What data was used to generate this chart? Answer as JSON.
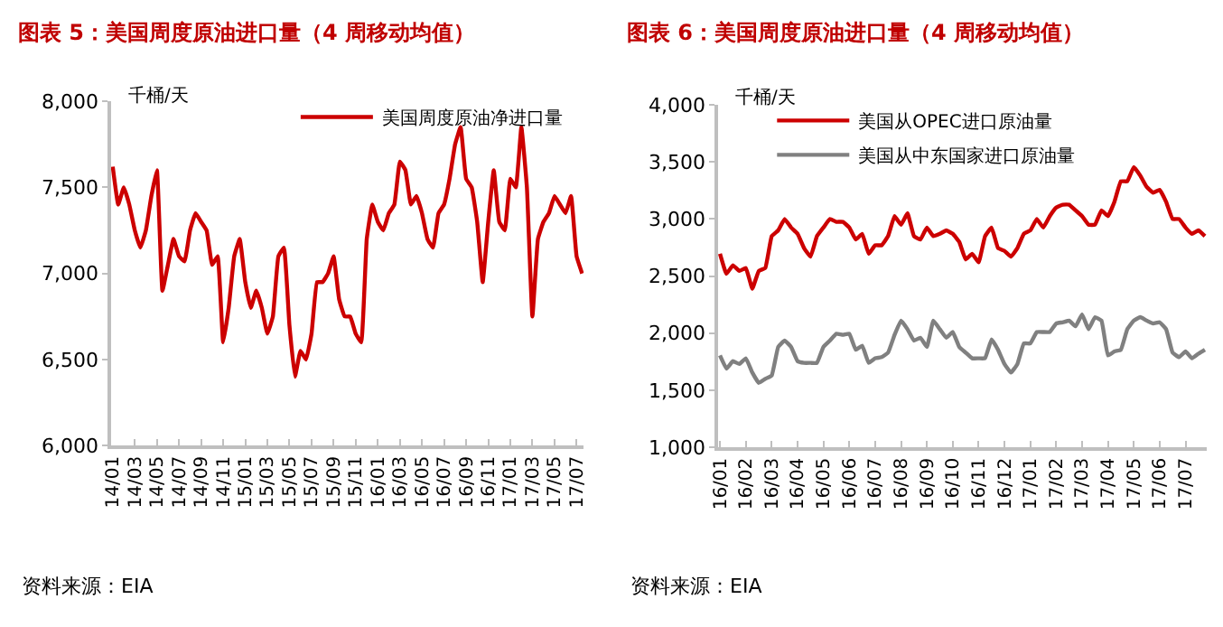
{
  "chart_data": [
    {
      "type": "line",
      "title": "图表 5：美国周度原油进口量（4 周移动均值）",
      "ylabel": "千桶/天",
      "annotations": [
        "资料来源：EIA"
      ],
      "legend": "top right",
      "grid": false,
      "marker": "none",
      "line_style": "solid",
      "categories": [
        "14/01",
        null,
        null,
        null,
        "14/03",
        null,
        null,
        null,
        "14/05",
        null,
        null,
        null,
        "14/07",
        null,
        null,
        null,
        "14/09",
        null,
        null,
        null,
        "14/11",
        null,
        null,
        null,
        "15/01",
        null,
        null,
        null,
        "15/03",
        null,
        null,
        null,
        "15/05",
        null,
        null,
        null,
        "15/07",
        null,
        null,
        null,
        "15/09",
        null,
        null,
        null,
        "15/11",
        null,
        null,
        null,
        "16/01",
        null,
        null,
        null,
        "16/03",
        null,
        null,
        null,
        "16/05",
        null,
        null,
        null,
        "16/07",
        null,
        null,
        null,
        "16/09",
        null,
        null,
        null,
        "16/11",
        null,
        null,
        null,
        "17/01",
        null,
        null,
        null,
        "17/03",
        null,
        null,
        null,
        "17/05",
        null,
        null,
        null,
        "17/07",
        null
      ],
      "ylim": [
        6000,
        8000
      ],
      "yticks": [
        {
          "value": 6000,
          "label": "6,000"
        },
        {
          "value": 6500,
          "label": "6,500"
        },
        {
          "value": 7000,
          "label": "7,000"
        },
        {
          "value": 7500,
          "label": "7,500"
        },
        {
          "value": 8000,
          "label": "8,000"
        }
      ],
      "series": [
        {
          "name": "美国周度原油净进口量",
          "color": "#cc0000",
          "values": [
            7620,
            7400,
            7500,
            7400,
            7250,
            7150,
            7250,
            7450,
            7600,
            6900,
            7050,
            7200,
            7100,
            7070,
            7250,
            7350,
            7300,
            7250,
            7050,
            7100,
            6600,
            6800,
            7100,
            7200,
            6950,
            6800,
            6900,
            6800,
            6650,
            6750,
            7100,
            7150,
            6700,
            6400,
            6550,
            6500,
            6650,
            6950,
            6950,
            7000,
            7100,
            6850,
            6750,
            6750,
            6650,
            6600,
            7200,
            7400,
            7300,
            7250,
            7350,
            7400,
            7650,
            7600,
            7400,
            7450,
            7350,
            7200,
            7150,
            7350,
            7400,
            7550,
            7750,
            7850,
            7550,
            7500,
            7300,
            6950,
            7300,
            7600,
            7300,
            7250,
            7550,
            7500,
            7850,
            7500,
            6750,
            7200,
            7300,
            7350,
            7450,
            7400,
            7350,
            7450,
            7100,
            7000
          ]
        }
      ]
    },
    {
      "type": "line",
      "title": "图表 6：美国周度原油进口量（4 周移动均值）",
      "ylabel": "千桶/天",
      "annotations": [
        "资料来源：EIA"
      ],
      "legend": "top",
      "grid": false,
      "marker": "none",
      "line_style": "solid",
      "categories": [
        "16/01",
        null,
        null,
        null,
        "16/02",
        null,
        null,
        null,
        "16/03",
        null,
        null,
        null,
        "16/04",
        null,
        null,
        null,
        "16/05",
        null,
        null,
        null,
        "16/06",
        null,
        null,
        null,
        "16/07",
        null,
        null,
        null,
        "16/08",
        null,
        null,
        null,
        "16/09",
        null,
        null,
        null,
        "16/10",
        null,
        null,
        null,
        "16/11",
        null,
        null,
        null,
        "16/12",
        null,
        null,
        null,
        "17/01",
        null,
        null,
        null,
        "17/02",
        null,
        null,
        null,
        "17/03",
        null,
        null,
        null,
        "17/04",
        null,
        null,
        null,
        "17/05",
        null,
        null,
        null,
        "17/06",
        null,
        null,
        null,
        "17/07",
        null,
        null,
        null
      ],
      "ylim": [
        1000,
        4000
      ],
      "yticks": [
        {
          "value": 1000,
          "label": "1,000"
        },
        {
          "value": 1500,
          "label": "1,500"
        },
        {
          "value": 2000,
          "label": "2,000"
        },
        {
          "value": 2500,
          "label": "2,500"
        },
        {
          "value": 3000,
          "label": "3,000"
        },
        {
          "value": 3500,
          "label": "3,500"
        },
        {
          "value": 4000,
          "label": "4,000"
        }
      ],
      "series": [
        {
          "name": "美国从OPEC进口原油量",
          "color": "#cc0000",
          "values": [
            2695,
            2520,
            2595,
            2545,
            2570,
            2390,
            2545,
            2570,
            2850,
            2900,
            3000,
            2925,
            2870,
            2745,
            2670,
            2850,
            2925,
            3000,
            2975,
            2975,
            2925,
            2820,
            2870,
            2695,
            2770,
            2770,
            2850,
            3025,
            2950,
            3050,
            2850,
            2820,
            2925,
            2850,
            2870,
            2900,
            2870,
            2800,
            2645,
            2695,
            2620,
            2850,
            2925,
            2745,
            2720,
            2670,
            2745,
            2870,
            2900,
            3000,
            2925,
            3025,
            3100,
            3125,
            3125,
            3075,
            3025,
            2950,
            2950,
            3075,
            3025,
            3150,
            3330,
            3330,
            3455,
            3380,
            3280,
            3230,
            3255,
            3150,
            3000,
            3000,
            2925,
            2870,
            2900,
            2850
          ]
        },
        {
          "name": "美国从中东国家进口原油量",
          "color": "#808080",
          "values": [
            1805,
            1690,
            1755,
            1730,
            1780,
            1655,
            1565,
            1600,
            1630,
            1880,
            1935,
            1880,
            1755,
            1740,
            1740,
            1740,
            1880,
            1935,
            1995,
            1985,
            1995,
            1855,
            1890,
            1740,
            1780,
            1790,
            1830,
            1985,
            2110,
            2035,
            1935,
            1960,
            1880,
            2110,
            2035,
            1960,
            2010,
            1880,
            1830,
            1780,
            1780,
            1780,
            1945,
            1855,
            1730,
            1655,
            1730,
            1910,
            1910,
            2010,
            2010,
            2010,
            2085,
            2095,
            2110,
            2060,
            2165,
            2035,
            2140,
            2110,
            1805,
            1840,
            1855,
            2035,
            2110,
            2140,
            2110,
            2085,
            2095,
            2035,
            1830,
            1790,
            1840,
            1780,
            1820,
            1855
          ]
        }
      ]
    }
  ]
}
